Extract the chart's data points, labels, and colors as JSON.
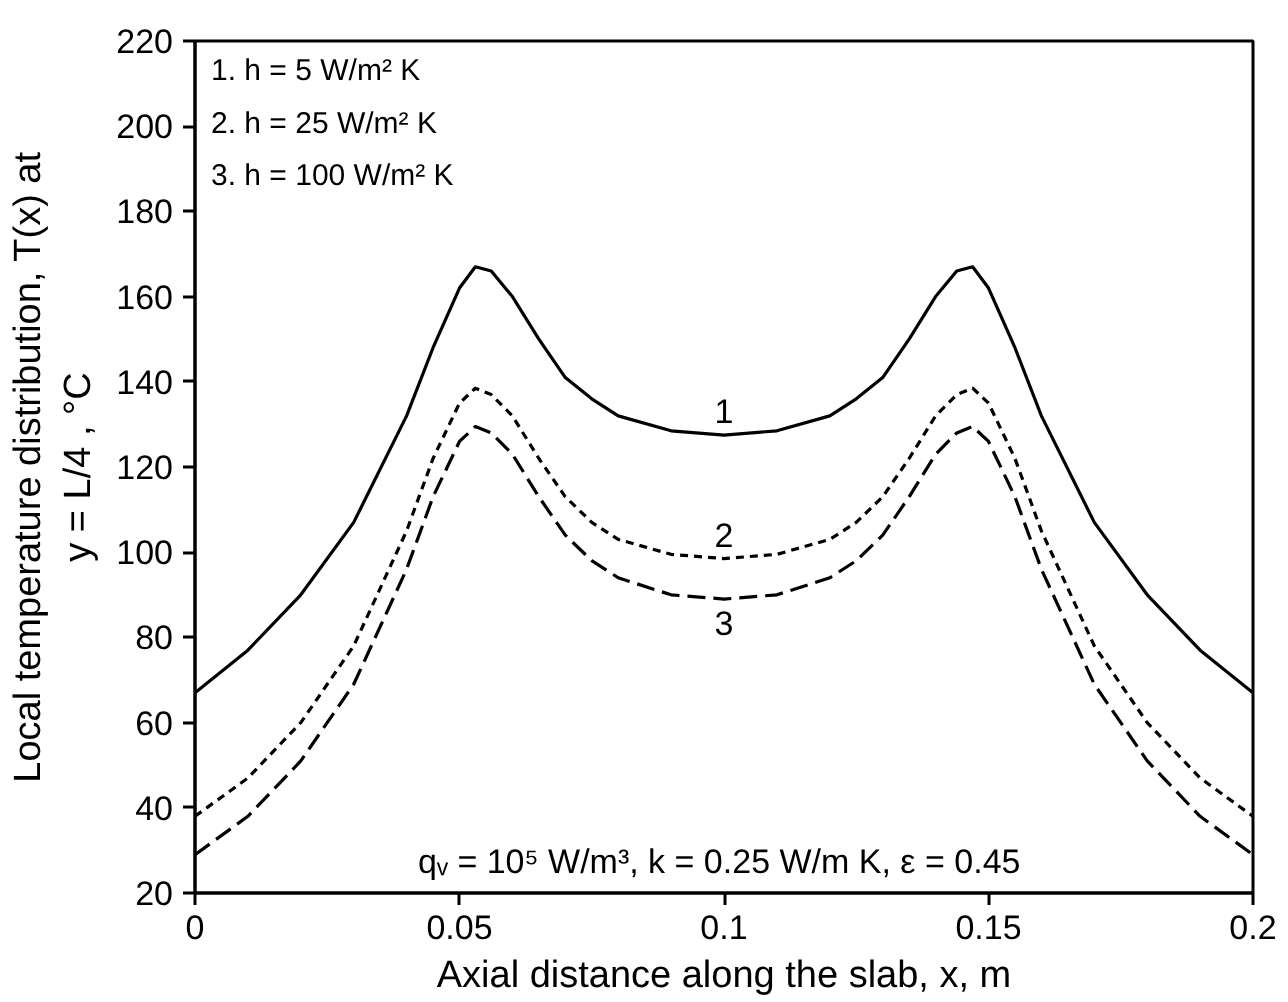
{
  "chart_data": {
    "type": "line",
    "xlabel": "Axial distance along the slab, x, m",
    "ylabel": "Local temperature distribution, T(x) at\ny = L/4 , °C",
    "x": [
      0,
      0.01,
      0.02,
      0.03,
      0.04,
      0.045,
      0.05,
      0.053,
      0.056,
      0.06,
      0.065,
      0.07,
      0.075,
      0.08,
      0.09,
      0.1,
      0.11,
      0.12,
      0.125,
      0.13,
      0.135,
      0.14,
      0.144,
      0.147,
      0.15,
      0.155,
      0.16,
      0.17,
      0.18,
      0.19,
      0.2
    ],
    "series": [
      {
        "color": "#000000",
        "line_style": "solid",
        "values": [
          67,
          77,
          90,
          107,
          132,
          148,
          162,
          167,
          166,
          160,
          150,
          141,
          136,
          132,
          128.5,
          127.5,
          128.5,
          132,
          136,
          141,
          150,
          160,
          166,
          167,
          162,
          148,
          132,
          107,
          90,
          77,
          67
        ]
      },
      {
        "color": "#000000",
        "line_style": "dotted",
        "values": [
          38,
          47,
          60,
          78,
          105,
          122,
          135,
          138.5,
          137,
          132,
          122,
          113,
          107,
          103,
          99.5,
          98.5,
          99.5,
          103,
          107,
          113,
          122,
          132,
          137,
          138.5,
          135,
          122,
          105,
          78,
          60,
          47,
          38
        ]
      },
      {
        "color": "#000000",
        "line_style": "dashed",
        "values": [
          29,
          38,
          51,
          69,
          96,
          113,
          126,
          129.5,
          128,
          123,
          113,
          104,
          98,
          94,
          90,
          89,
          90,
          94,
          98,
          104,
          113,
          123,
          128,
          129.5,
          126,
          113,
          96,
          69,
          51,
          38,
          29
        ]
      }
    ],
    "xlim": [
      0,
      0.2
    ],
    "xticks": [
      0,
      0.05,
      0.1,
      0.15,
      0.2
    ],
    "ylim": [
      20,
      220
    ],
    "yticks": [
      20,
      40,
      60,
      80,
      100,
      120,
      140,
      160,
      180,
      200,
      220
    ],
    "grid": false,
    "marker": "none",
    "annotations": [
      "1",
      "2",
      "3",
      "1. h = 5 W/m² K",
      "2. h = 25 W/m² K",
      "3. h = 100 W/m² K",
      "qᵥ = 10⁵ W/m³, k = 0.25 W/m K, ε  = 0.45"
    ]
  }
}
